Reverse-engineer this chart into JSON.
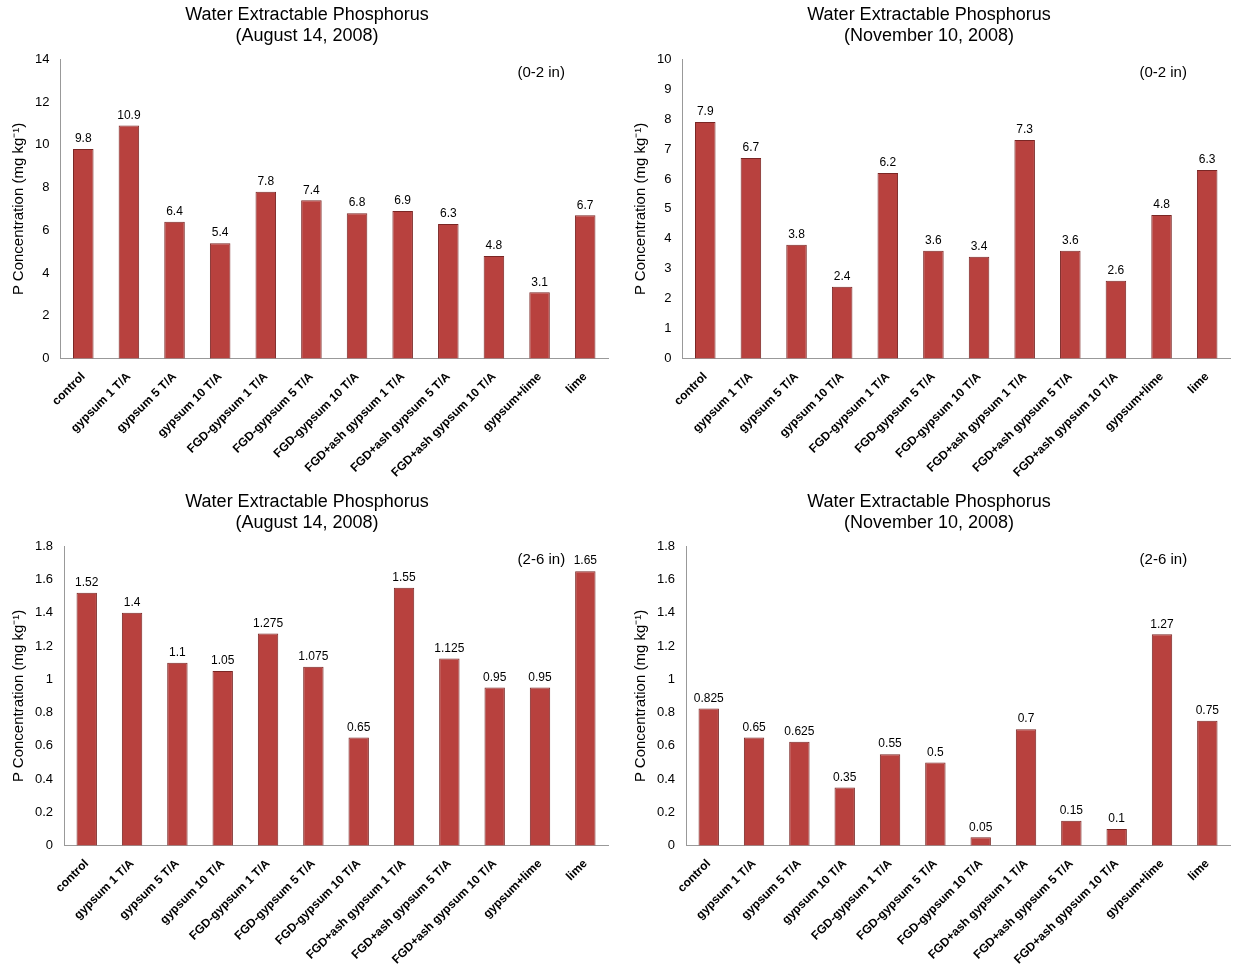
{
  "chart_data": [
    {
      "type": "bar",
      "title": "Water Extractable Phosphorus\n(August 14, 2008)",
      "ylabel": "P Concentration (mg kg⁻¹)",
      "annotations": [
        "(0-2 in)"
      ],
      "categories": [
        "control",
        "gypsum 1 T/A",
        "gypsum 5 T/A",
        "gypsum 10 T/A",
        "FGD-gypsum 1 T/A",
        "FGD-gypsum 5 T/A",
        "FGD-gypsum 10 T/A",
        "FGD+ash gypsum 1 T/A",
        "FGD+ash gypsum 5 T/A",
        "FGD+ash gypsum 10 T/A",
        "gypsum+lime",
        "lime"
      ],
      "values": [
        9.8,
        10.9,
        6.4,
        5.4,
        7.8,
        7.4,
        6.8,
        6.9,
        6.3,
        4.8,
        3.1,
        6.7
      ],
      "color": "#b8413e",
      "ylim": [
        0,
        14
      ],
      "yticks": [
        0,
        2,
        4,
        6,
        8,
        10,
        12,
        14
      ],
      "grid": false,
      "legend": false,
      "data_labels": true
    },
    {
      "type": "bar",
      "title": "Water Extractable Phosphorus\n(November 10, 2008)",
      "ylabel": "P Concentration (mg kg⁻¹)",
      "annotations": [
        "(0-2 in)"
      ],
      "categories": [
        "control",
        "gypsum 1 T/A",
        "gypsum 5 T/A",
        "gypsum 10 T/A",
        "FGD-gypsum 1 T/A",
        "FGD-gypsum 5 T/A",
        "FGD-gypsum 10 T/A",
        "FGD+ash gypsum 1 T/A",
        "FGD+ash gypsum 5 T/A",
        "FGD+ash gypsum 10 T/A",
        "gypsum+lime",
        "lime"
      ],
      "values": [
        7.9,
        6.7,
        3.8,
        2.4,
        6.2,
        3.6,
        3.4,
        7.3,
        3.6,
        2.6,
        4.8,
        6.3
      ],
      "color": "#b8413e",
      "ylim": [
        0,
        10
      ],
      "yticks": [
        0,
        1,
        2,
        3,
        4,
        5,
        6,
        7,
        8,
        9,
        10
      ],
      "grid": false,
      "legend": false,
      "data_labels": true
    },
    {
      "type": "bar",
      "title": "Water Extractable Phosphorus\n(August 14, 2008)",
      "ylabel": "P Concentration (mg kg⁻¹)",
      "annotations": [
        "(2-6 in)"
      ],
      "categories": [
        "control",
        "gypsum 1 T/A",
        "gypsum 5 T/A",
        "gypsum 10 T/A",
        "FGD-gypsum 1 T/A",
        "FGD-gypsum 5 T/A",
        "FGD-gypsum 10 T/A",
        "FGD+ash gypsum 1 T/A",
        "FGD+ash gypsum 5 T/A",
        "FGD+ash gypsum 10 T/A",
        "gypsum+lime",
        "lime"
      ],
      "values": [
        1.52,
        1.4,
        1.1,
        1.05,
        1.275,
        1.075,
        0.65,
        1.55,
        1.125,
        0.95,
        0.95,
        1.65
      ],
      "color": "#b8413e",
      "ylim": [
        0,
        1.8
      ],
      "yticks": [
        0,
        0.2,
        0.4,
        0.6,
        0.8,
        1,
        1.2,
        1.4,
        1.6,
        1.8
      ],
      "grid": false,
      "legend": false,
      "data_labels": true
    },
    {
      "type": "bar",
      "title": "Water Extractable Phosphorus\n(November 10, 2008)",
      "ylabel": "P Concentration (mg kg⁻¹)",
      "annotations": [
        "(2-6 in)"
      ],
      "categories": [
        "control",
        "gypsum 1 T/A",
        "gypsum 5 T/A",
        "gypsum 10 T/A",
        "FGD-gypsum 1 T/A",
        "FGD-gypsum 5 T/A",
        "FGD-gypsum 10 T/A",
        "FGD+ash gypsum 1 T/A",
        "FGD+ash gypsum 5 T/A",
        "FGD+ash gypsum 10 T/A",
        "gypsum+lime",
        "lime"
      ],
      "values": [
        0.825,
        0.65,
        0.625,
        0.35,
        0.55,
        0.5,
        0.05,
        0.7,
        0.15,
        0.1,
        1.27,
        0.75
      ],
      "color": "#b8413e",
      "ylim": [
        0,
        1.8
      ],
      "yticks": [
        0,
        0.2,
        0.4,
        0.6,
        0.8,
        1,
        1.2,
        1.4,
        1.6,
        1.8
      ],
      "grid": false,
      "legend": false,
      "data_labels": true
    }
  ]
}
